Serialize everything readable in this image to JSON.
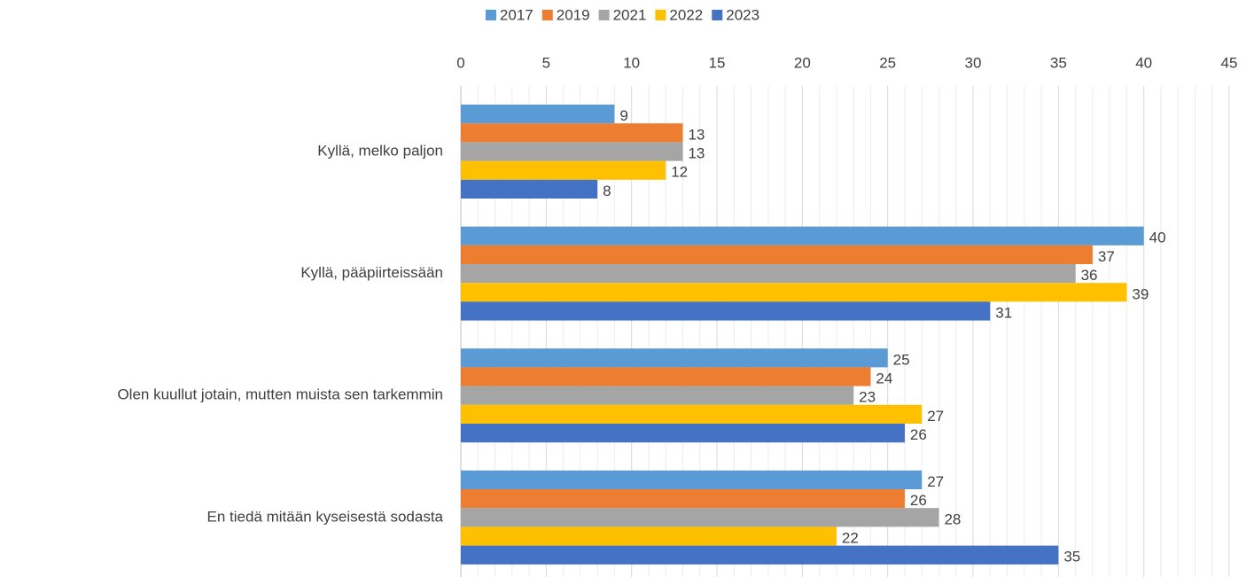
{
  "chart_data": {
    "type": "hbar",
    "categories": [
      "Kyllä, melko paljon",
      "Kyllä, pääpiirteissään",
      "Olen kuullut jotain, mutten muista sen tarkemmin",
      "En tiedä mitään kyseisestä sodasta"
    ],
    "series": [
      {
        "name": "2017",
        "color": "#5b9bd5",
        "values": [
          9,
          40,
          25,
          27
        ]
      },
      {
        "name": "2019",
        "color": "#ed7d31",
        "values": [
          13,
          37,
          24,
          26
        ]
      },
      {
        "name": "2021",
        "color": "#a5a5a5",
        "values": [
          13,
          36,
          23,
          28
        ]
      },
      {
        "name": "2022",
        "color": "#ffc000",
        "values": [
          12,
          39,
          27,
          22
        ]
      },
      {
        "name": "2023",
        "color": "#4472c4",
        "values": [
          8,
          31,
          26,
          35
        ]
      }
    ],
    "xlim": [
      0,
      45
    ],
    "xticks": [
      0,
      5,
      10,
      15,
      20,
      25,
      30,
      35,
      40,
      45
    ],
    "grid": true,
    "minor_grid": true,
    "legend": "top"
  }
}
